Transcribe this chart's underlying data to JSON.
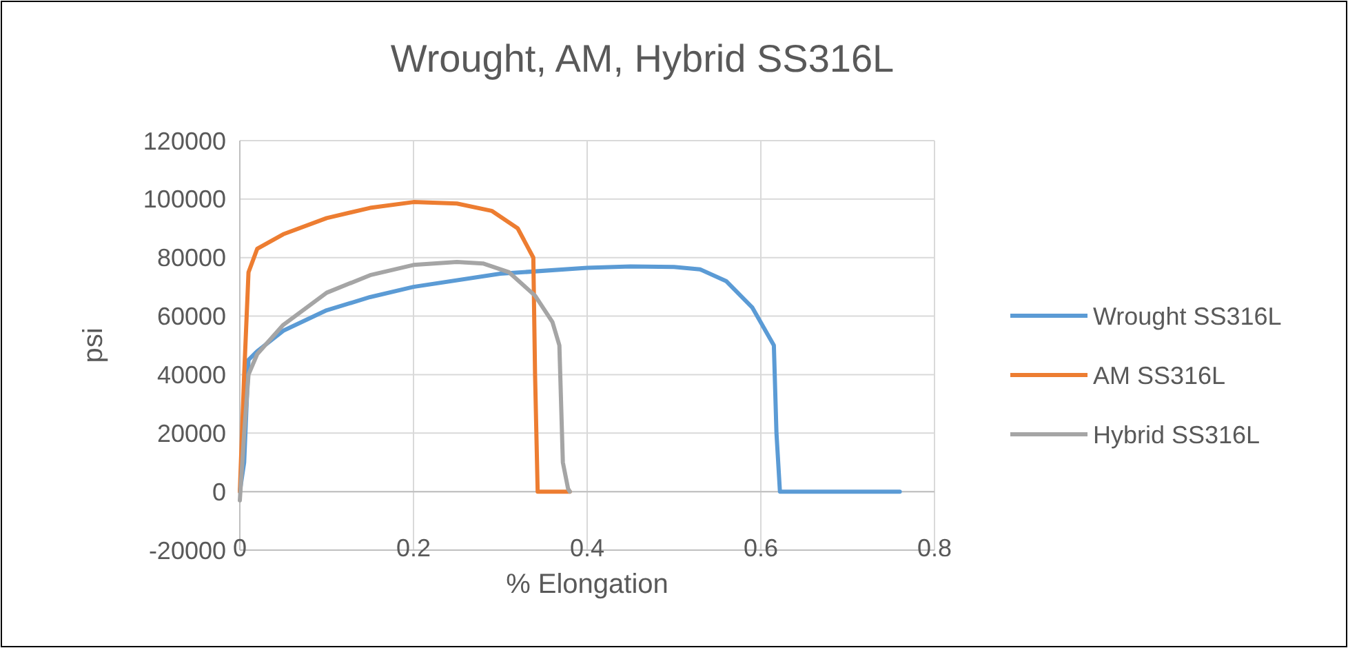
{
  "chart_data": {
    "type": "line",
    "title": "Wrought, AM, Hybrid SS316L",
    "xlabel": "% Elongation",
    "ylabel": "psi",
    "xlim": [
      0,
      0.8
    ],
    "xticks": [
      0,
      0.2,
      0.4,
      0.6,
      0.8
    ],
    "ylim": [
      -20000,
      120000
    ],
    "yticks": [
      -20000,
      0,
      20000,
      40000,
      60000,
      80000,
      100000,
      120000
    ],
    "grid": true,
    "legend": "right",
    "marker": "none",
    "line_style": "solid",
    "series": [
      {
        "name": "Wrought SS316L",
        "color": "#5b9bd5",
        "x": [
          0,
          0.005,
          0.01,
          0.02,
          0.05,
          0.1,
          0.15,
          0.2,
          0.3,
          0.4,
          0.45,
          0.5,
          0.53,
          0.56,
          0.59,
          0.615,
          0.618,
          0.622,
          0.76
        ],
        "values": [
          0,
          10000,
          45000,
          48000,
          55000,
          62000,
          66500,
          70000,
          74500,
          76500,
          77000,
          76800,
          76000,
          72000,
          63000,
          50000,
          20000,
          0,
          0
        ]
      },
      {
        "name": "AM SS316L",
        "color": "#ed7d31",
        "x": [
          0,
          0.005,
          0.01,
          0.02,
          0.05,
          0.1,
          0.15,
          0.2,
          0.25,
          0.29,
          0.32,
          0.338,
          0.34,
          0.343,
          0.38
        ],
        "values": [
          0,
          40000,
          75000,
          83000,
          88000,
          93500,
          97000,
          99000,
          98500,
          96000,
          90000,
          80000,
          40000,
          0,
          0
        ]
      },
      {
        "name": "Hybrid SS316L",
        "color": "#a5a5a5",
        "x": [
          0,
          0.005,
          0.01,
          0.02,
          0.05,
          0.1,
          0.15,
          0.2,
          0.25,
          0.28,
          0.31,
          0.34,
          0.36,
          0.368,
          0.372,
          0.378,
          0.38
        ],
        "values": [
          -3000,
          20000,
          40000,
          47000,
          57000,
          68000,
          74000,
          77500,
          78500,
          78000,
          75000,
          67000,
          58000,
          50000,
          10000,
          1000,
          0
        ]
      }
    ]
  }
}
